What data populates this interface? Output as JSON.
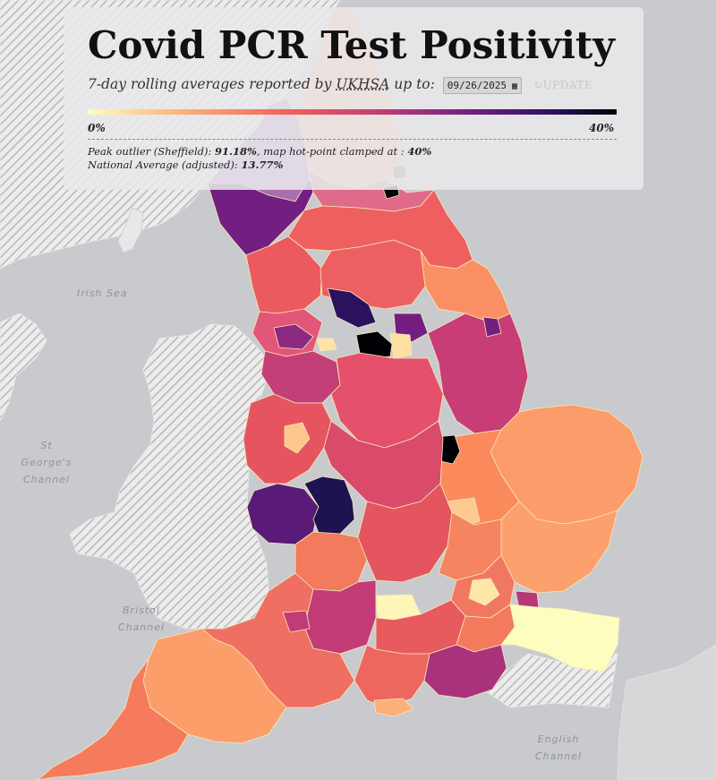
{
  "header": {
    "title": "Covid PCR Test Positivity",
    "subtitle_prefix": "7-day rolling averages reported by",
    "source_link": "UKHSA",
    "subtitle_suffix": "up to:",
    "date_value": "09/26/2025",
    "update_label": "UPDATE"
  },
  "scale": {
    "min_label": "0%",
    "max_label": "40%",
    "colors": [
      "#fcfdbf",
      "#feb078",
      "#f1605d",
      "#b73779",
      "#721f81",
      "#2c115f",
      "#000004"
    ]
  },
  "notes": {
    "outlier_prefix": "Peak outlier (Sheffield):",
    "outlier_value": "91.18%",
    "outlier_middle": ", map hot-point clamped at :",
    "clamp_value": "40%",
    "national_prefix": "National Average (adjusted):",
    "national_value": "13.77%"
  },
  "sea_labels": {
    "irish_sea": "Irish Sea",
    "st_georges_channel": "St George's Channel",
    "bristol_channel": "Bristol Channel",
    "english_channel": "English Channel"
  },
  "colors": {
    "background": "#c9cacd",
    "land_outside": "#d6d7d9",
    "border": "#f5e9b8"
  }
}
